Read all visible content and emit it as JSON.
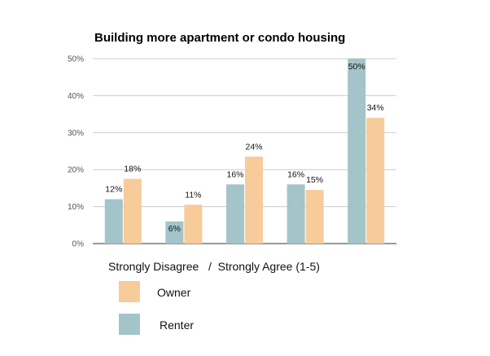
{
  "chart_data": {
    "type": "bar",
    "title": "Building more apartment or condo housing",
    "xlabel": "Strongly Disagree   /  Strongly Agree (1-5)",
    "ylabel": "",
    "categories": [
      "1",
      "2",
      "3",
      "4",
      "5"
    ],
    "show_category_labels": false,
    "ylim": [
      0,
      50
    ],
    "yticks": [
      "0%",
      "10%",
      "20%",
      "30%",
      "40%",
      "50%"
    ],
    "grid": true,
    "legend_position": "bottom-left",
    "series": [
      {
        "name": "Renter",
        "color": "#a3c4c8",
        "values": [
          12,
          6,
          16,
          16,
          50
        ],
        "labels": [
          "12%",
          "6%",
          "16%",
          "16%",
          "50%"
        ]
      },
      {
        "name": "Owner",
        "color": "#f8cb9b",
        "values": [
          17.5,
          10.5,
          23.5,
          14.5,
          34
        ],
        "labels": [
          "18%",
          "11%",
          "24%",
          "15%",
          "34%"
        ]
      }
    ]
  },
  "legend": {
    "items": [
      {
        "name": "Owner",
        "color": "#f8cb9b"
      },
      {
        "name": "Renter",
        "color": "#a3c4c8"
      }
    ]
  }
}
